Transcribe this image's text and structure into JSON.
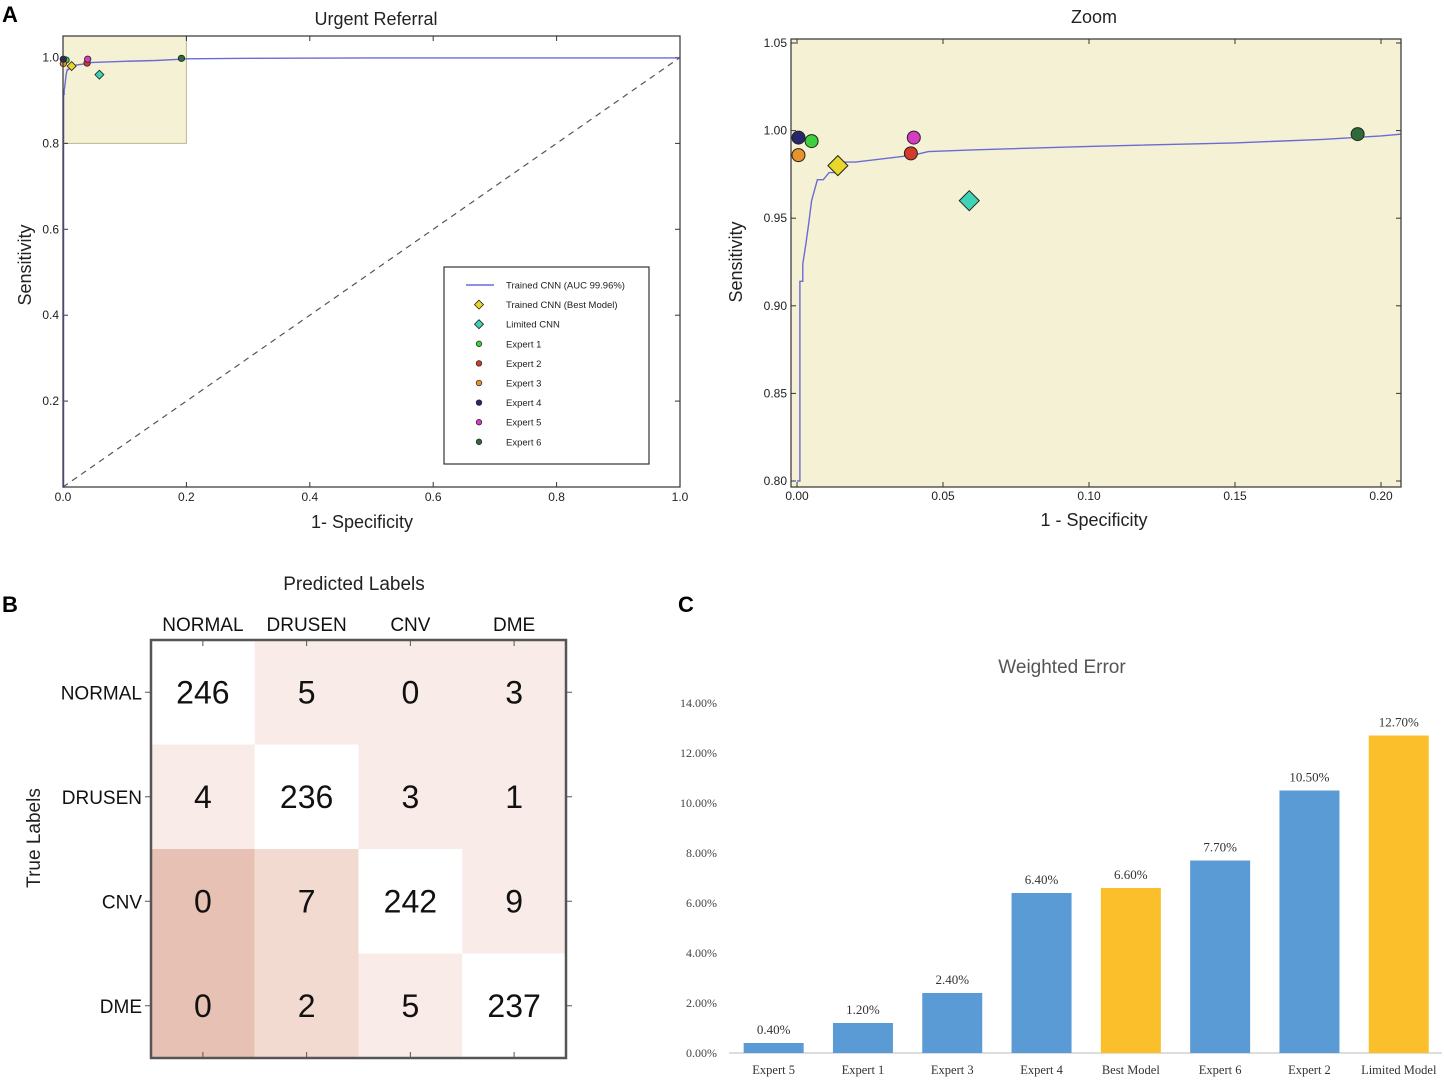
{
  "panels": {
    "a": "A",
    "b": "B",
    "c": "C"
  },
  "colors": {
    "curve": "#6b6bd6",
    "zoom_bg": "#f4f1d4",
    "bar_blue": "#5b9bd5",
    "bar_gold": "#fbbf2c",
    "grid_dark": "#333333"
  },
  "roc": {
    "title": "Urgent Referral",
    "xlabel": "1- Specificity",
    "ylabel": "Sensitivity",
    "xlim": [
      0,
      1
    ],
    "ylim": [
      0,
      1.05
    ],
    "xticks": [
      {
        "v": 0.0,
        "t": "0.0"
      },
      {
        "v": 0.2,
        "t": "0.2"
      },
      {
        "v": 0.4,
        "t": "0.4"
      },
      {
        "v": 0.6,
        "t": "0.6"
      },
      {
        "v": 0.8,
        "t": "0.8"
      },
      {
        "v": 1.0,
        "t": "1.0"
      }
    ],
    "yticks": [
      {
        "v": 0.2,
        "t": "0.2"
      },
      {
        "v": 0.4,
        "t": "0.4"
      },
      {
        "v": 0.6,
        "t": "0.6"
      },
      {
        "v": 0.8,
        "t": "0.8"
      },
      {
        "v": 1.0,
        "t": "1.0"
      }
    ],
    "zoom_region": {
      "x": [
        0,
        0.2
      ],
      "y": [
        0.8,
        1.05
      ]
    },
    "legend": [
      {
        "label": "Trained CNN (AUC 99.96%)",
        "marker": "line",
        "color": "#6b6bd6"
      },
      {
        "label": "Trained CNN (Best Model)",
        "marker": "diamond",
        "color": "#e8d62a"
      },
      {
        "label": "Limited CNN",
        "marker": "diamond",
        "color": "#3fd3b6"
      },
      {
        "label": "Expert 1",
        "marker": "circle",
        "color": "#3ecf3e"
      },
      {
        "label": "Expert 2",
        "marker": "circle",
        "color": "#d43a2a"
      },
      {
        "label": "Expert 3",
        "marker": "circle",
        "color": "#e8932a"
      },
      {
        "label": "Expert 4",
        "marker": "circle",
        "color": "#27276e"
      },
      {
        "label": "Expert 5",
        "marker": "circle",
        "color": "#d63cc2"
      },
      {
        "label": "Expert 6",
        "marker": "circle",
        "color": "#2e6b3a"
      }
    ]
  },
  "zoom": {
    "title": "Zoom",
    "xlabel": "1 - Specificity",
    "ylabel": "Sensitivity",
    "xlim": [
      0,
      0.207
    ],
    "ylim": [
      0.8,
      1.055
    ],
    "xticks": [
      {
        "v": 0.0,
        "t": "0.00"
      },
      {
        "v": 0.05,
        "t": "0.05"
      },
      {
        "v": 0.1,
        "t": "0.10"
      },
      {
        "v": 0.15,
        "t": "0.15"
      },
      {
        "v": 0.2,
        "t": "0.20"
      }
    ],
    "yticks": [
      {
        "v": 0.8,
        "t": "0.80"
      },
      {
        "v": 0.85,
        "t": "0.85"
      },
      {
        "v": 0.9,
        "t": "0.90"
      },
      {
        "v": 0.95,
        "t": "0.95"
      },
      {
        "v": 1.0,
        "t": "1.00"
      },
      {
        "v": 1.05,
        "t": "1.05"
      }
    ]
  },
  "chart_data": [
    {
      "type": "line",
      "title": "Urgent Referral",
      "xlabel": "1- Specificity",
      "ylabel": "Sensitivity",
      "series": [
        {
          "name": "Trained CNN (AUC 99.96%)",
          "x": [
            0,
            0.001,
            0.001,
            0.002,
            0.002,
            0.003,
            0.004,
            0.005,
            0.007,
            0.009,
            0.011,
            0.014,
            0.016,
            0.02,
            0.04,
            0.045,
            0.06,
            0.1,
            0.15,
            0.18,
            0.2,
            0.3,
            0.5,
            0.7,
            0.9,
            0.995,
            1.0
          ],
          "y": [
            0,
            0,
            0.914,
            0.914,
            0.924,
            0.935,
            0.947,
            0.96,
            0.972,
            0.972,
            0.976,
            0.976,
            0.982,
            0.982,
            0.986,
            0.988,
            0.989,
            0.991,
            0.993,
            0.995,
            0.997,
            0.998,
            0.999,
            0.999,
            0.999,
            0.999,
            1.0
          ]
        },
        {
          "name": "Chance",
          "x": [
            0,
            1
          ],
          "y": [
            0,
            1
          ],
          "style": "dashed"
        }
      ],
      "points": [
        {
          "name": "Trained CNN (Best Model)",
          "x": 0.014,
          "y": 0.98,
          "marker": "diamond"
        },
        {
          "name": "Limited CNN",
          "x": 0.059,
          "y": 0.96,
          "marker": "diamond"
        },
        {
          "name": "Expert 1",
          "x": 0.005,
          "y": 0.994,
          "marker": "circle"
        },
        {
          "name": "Expert 2",
          "x": 0.039,
          "y": 0.987,
          "marker": "circle"
        },
        {
          "name": "Expert 3",
          "x": 0.0005,
          "y": 0.986,
          "marker": "circle"
        },
        {
          "name": "Expert 4",
          "x": 0.0005,
          "y": 0.996,
          "marker": "circle"
        },
        {
          "name": "Expert 5",
          "x": 0.04,
          "y": 0.996,
          "marker": "circle"
        },
        {
          "name": "Expert 6",
          "x": 0.192,
          "y": 0.998,
          "marker": "circle"
        }
      ]
    },
    {
      "type": "heatmap",
      "title": "Predicted Labels",
      "xlabel": "Predicted Labels",
      "ylabel": "True Labels",
      "columns": [
        "NORMAL",
        "DRUSEN",
        "CNV",
        "DME"
      ],
      "rows": [
        "NORMAL",
        "DRUSEN",
        "CNV",
        "DME"
      ],
      "values": [
        [
          246,
          5,
          0,
          3
        ],
        [
          4,
          236,
          3,
          1
        ],
        [
          0,
          7,
          242,
          9
        ],
        [
          0,
          2,
          5,
          237
        ]
      ],
      "cell_colors": [
        [
          "#ffffff",
          "#f9ebe7",
          "#f9ebe7",
          "#f9ebe7"
        ],
        [
          "#f9ebe7",
          "#ffffff",
          "#f9ebe7",
          "#f9ebe7"
        ],
        [
          "#e7c1b3",
          "#f3dad1",
          "#ffffff",
          "#f9ebe7"
        ],
        [
          "#e7c1b3",
          "#f3dad1",
          "#f9ebe7",
          "#ffffff"
        ]
      ]
    },
    {
      "type": "bar",
      "title": "Weighted Error",
      "categories": [
        "Expert 5",
        "Expert 1",
        "Expert 3",
        "Expert 4",
        "Best Model",
        "Expert 6",
        "Expert 2",
        "Limited Model"
      ],
      "values": [
        0.4,
        1.2,
        2.4,
        6.4,
        6.6,
        7.7,
        10.5,
        12.7
      ],
      "value_labels": [
        "0.40%",
        "1.20%",
        "2.40%",
        "6.40%",
        "6.60%",
        "7.70%",
        "10.50%",
        "12.70%"
      ],
      "highlight": [
        false,
        false,
        false,
        false,
        true,
        false,
        false,
        true
      ],
      "ylim": [
        0,
        14
      ],
      "yticks": [
        {
          "v": 0,
          "t": "0.00%"
        },
        {
          "v": 2,
          "t": "2.00%"
        },
        {
          "v": 4,
          "t": "4.00%"
        },
        {
          "v": 6,
          "t": "6.00%"
        },
        {
          "v": 8,
          "t": "8.00%"
        },
        {
          "v": 10,
          "t": "10.00%"
        },
        {
          "v": 12,
          "t": "12.00%"
        },
        {
          "v": 14,
          "t": "14.00%"
        }
      ]
    }
  ]
}
